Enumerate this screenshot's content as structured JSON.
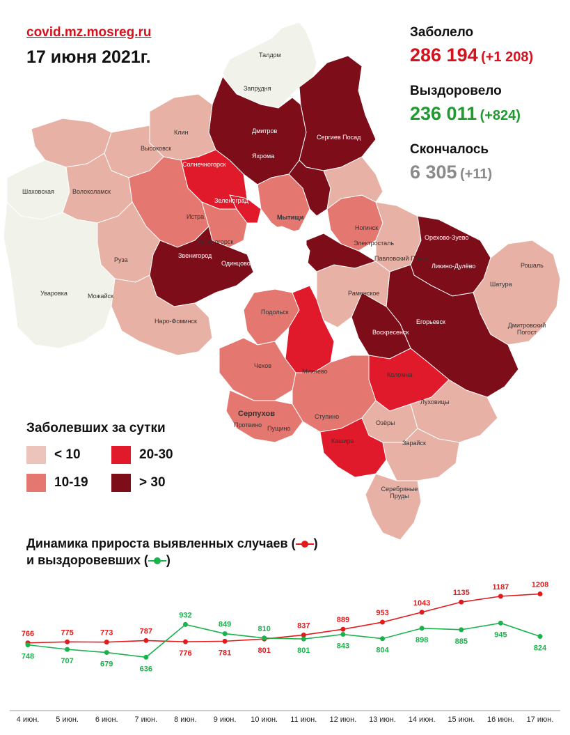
{
  "header": {
    "source": "covid.mz.mosreg.ru",
    "date": "17 июня 2021г."
  },
  "stats": {
    "cases": {
      "label": "Заболело",
      "value": "286 194",
      "delta": "(+1 208)",
      "color": "#d3141e"
    },
    "recovered": {
      "label": "Выздоровело",
      "value": "236 011",
      "delta": "(+824)",
      "color": "#1f9a2e"
    },
    "deaths": {
      "label": "Скончалось",
      "value": "6 305",
      "delta": "(+11)",
      "color": "#8a8a8a"
    }
  },
  "legend": {
    "title": "Заболевших за сутки",
    "items": [
      {
        "label": "< 10",
        "color": "#ecc4bc"
      },
      {
        "label": "20-30",
        "color": "#e0192b"
      },
      {
        "label": "10-19",
        "color": "#e47870"
      },
      {
        "label": "> 30",
        "color": "#7e0d1a"
      }
    ]
  },
  "map_labels": {
    "taldom": "Талдом",
    "zaprudnya": "Запрудня",
    "dmitrov": "Дмитров",
    "yakhroma": "Яхрома",
    "sergiev_posad": "Сергиев Посад",
    "klin": "Клин",
    "vysokovsk": "Высоковск",
    "solnechnogorsk": "Солнечногорск",
    "shakhovskaya": "Шаховская",
    "volokolamsk": "Волоколамск",
    "zelenograd": "Зеленоград",
    "mytishchi": "Мытищи",
    "istra": "Истра",
    "noginsk": "Ногинск",
    "elektrostal": "Электросталь",
    "orekhovo_zuevo": "Орехово-Зуево",
    "krasnogorsk": "Красногорск",
    "zvenigorod": "Звенигород",
    "odintsovo": "Одинцово",
    "pavlovsky_posad": "Павловский Посад",
    "likino_dulevo": "Ликино-Дулёво",
    "roshal": "Рошаль",
    "ruza": "Руза",
    "shatura": "Шатура",
    "uvarovka": "Уваровка",
    "mozhaysk": "Можайск",
    "ramenskoe": "Раменское",
    "naro_fominsk": "Наро-Фоминск",
    "podolsk": "Подольск",
    "egorevsk": "Егорьевск",
    "dmitrovsky_pogost": "Дмитровский Погост",
    "voskresensk": "Воскресенск",
    "chekhov": "Чехов",
    "mikhnevo": "Михнево",
    "kolomna": "Коломна",
    "lukhovitsy": "Луховицы",
    "serpukhov": "Серпухов",
    "protvino": "Протвино",
    "pushchino": "Пущино",
    "stupino": "Ступино",
    "ozyory": "Озёры",
    "zaraysk": "Зарайск",
    "kashira": "Кашира",
    "serebryanye_prudy": "Серебряные Пруды"
  },
  "chart_data": {
    "type": "line",
    "title": "Динамика прироста выявленных случаев",
    "title_line2": "и выздоровевших",
    "categories": [
      "4 июн.",
      "5 июн.",
      "6 июн.",
      "7 июн.",
      "8 июн.",
      "9 июн.",
      "10 июн.",
      "11 июн.",
      "12 июн.",
      "13 июн.",
      "14 июн.",
      "15 июн.",
      "16 июн.",
      "17 июн."
    ],
    "series": [
      {
        "key": "cases",
        "values": [
          766,
          775,
          773,
          787,
          776,
          781,
          801,
          837,
          889,
          953,
          1043,
          1135,
          1187,
          1208
        ],
        "color": "#e31a1c"
      },
      {
        "key": "recovered",
        "values": [
          748,
          707,
          679,
          636,
          932,
          849,
          810,
          801,
          843,
          804,
          898,
          885,
          945,
          824
        ],
        "color": "#19b24b"
      }
    ],
    "ylim": [
      500,
      1350
    ],
    "grid": false,
    "legend": "in-title"
  }
}
